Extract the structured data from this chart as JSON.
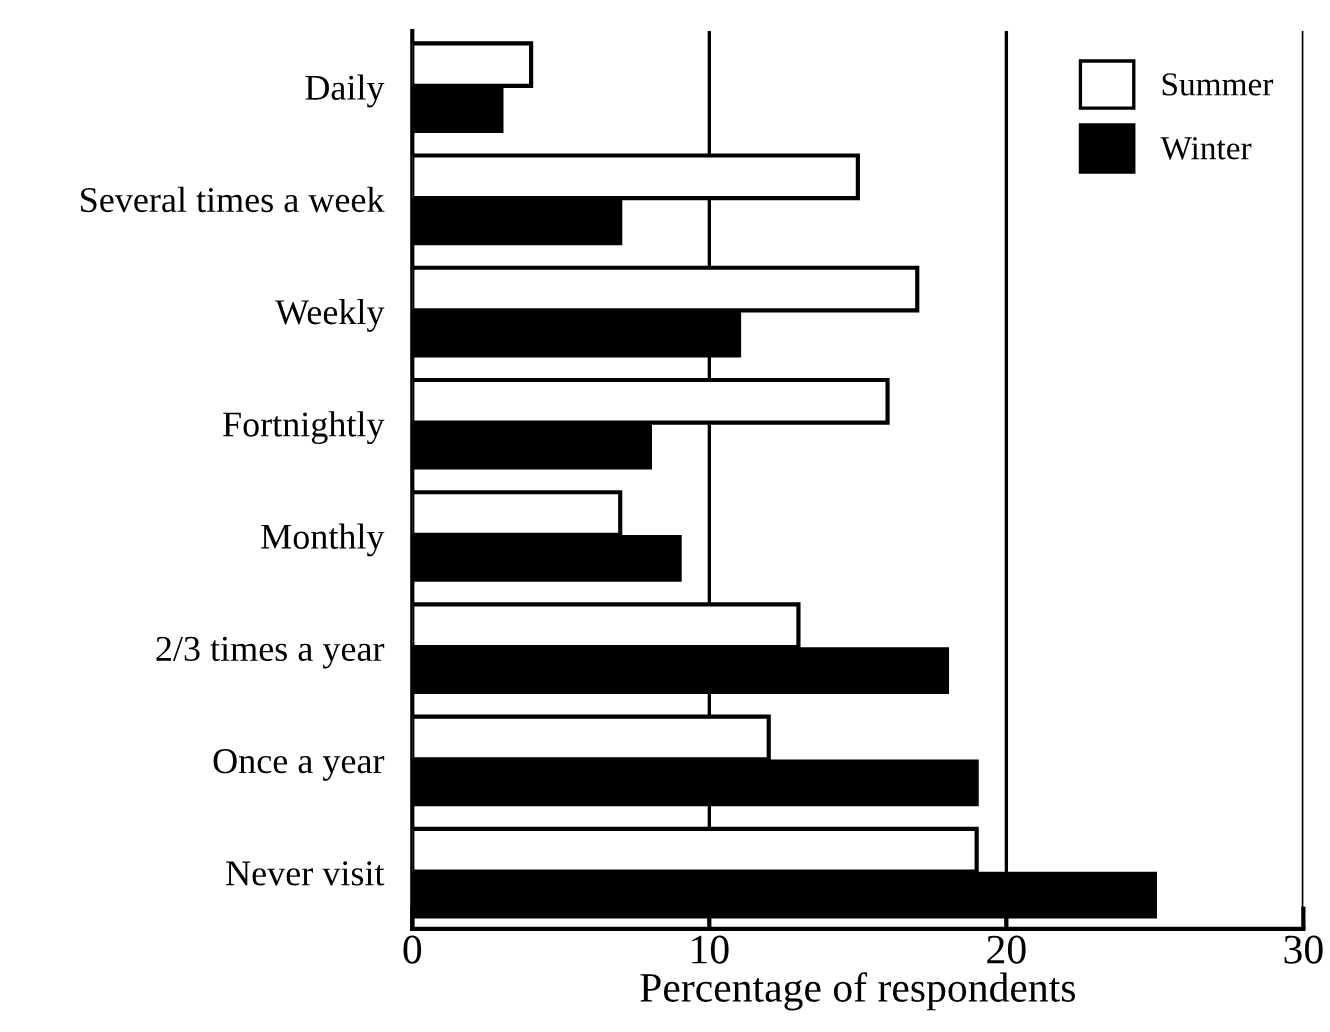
{
  "chart_data": {
    "type": "bar",
    "orientation": "horizontal",
    "xlabel": "Percentage of respondents",
    "categories": [
      "Daily",
      "Several times a week",
      "Weekly",
      "Fortnightly",
      "Monthly",
      "2/3 times a year",
      "Once a year",
      "Never visit"
    ],
    "series": [
      {
        "name": "Summer",
        "color": "#ffffff",
        "values": [
          4,
          15,
          17,
          16,
          7,
          13,
          12,
          19
        ]
      },
      {
        "name": "Winter",
        "color": "#000000",
        "values": [
          3,
          7,
          11,
          8,
          9,
          18,
          19,
          25
        ]
      }
    ],
    "xlim": [
      0,
      30
    ],
    "xticks": [
      0,
      10,
      20,
      30
    ],
    "grid": "x",
    "legend": "top right"
  }
}
